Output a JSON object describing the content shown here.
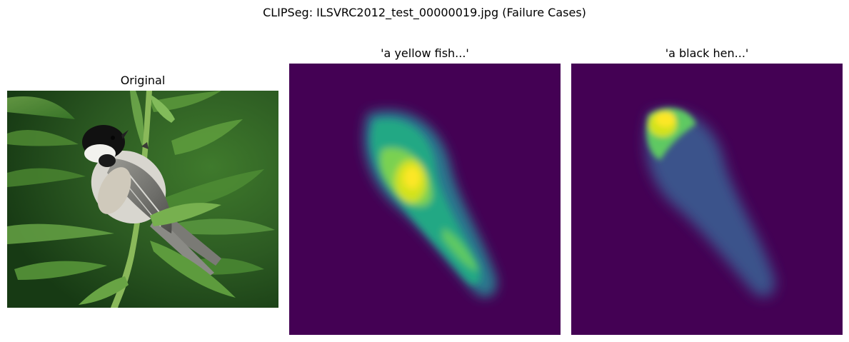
{
  "figure": {
    "title": "CLIPSeg: ILSVRC2012_test_00000019.jpg (Failure Cases)"
  },
  "panels": [
    {
      "title": "Original",
      "image": "bird-photo",
      "subject": "small bird with black cap perched on a green plant stem"
    },
    {
      "title": "'a yellow fish...'",
      "image": "heatmap",
      "colormap": "viridis"
    },
    {
      "title": "'a black hen...'",
      "image": "heatmap",
      "colormap": "viridis"
    }
  ],
  "colors": {
    "viridis_low": "#440154",
    "viridis_mid": "#21908c",
    "viridis_high": "#fde725",
    "foliage": "#2f6b2a"
  }
}
